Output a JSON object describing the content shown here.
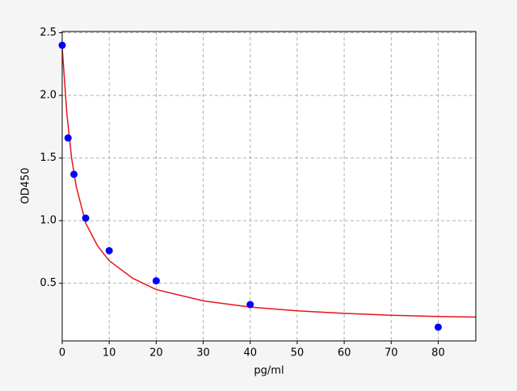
{
  "chart_data": {
    "type": "scatter",
    "xlabel": "pg/ml",
    "ylabel": "OD450",
    "xlim": [
      0,
      88
    ],
    "ylim": [
      0.04,
      2.51
    ],
    "xticks": [
      0,
      10,
      20,
      30,
      40,
      50,
      60,
      70,
      80
    ],
    "yticks": [
      0.5,
      {
        "value": 1,
        "label": "1.0"
      },
      1.5,
      {
        "value": 2,
        "label": "2.0"
      },
      2.5
    ],
    "grid": true,
    "series": [
      {
        "mode": "line",
        "color": "#e8141b",
        "x": [
          0,
          1,
          2,
          3,
          5,
          7.5,
          10,
          15,
          20,
          30,
          40,
          50,
          60,
          70,
          80,
          88
        ],
        "values": [
          2.38,
          1.85,
          1.5,
          1.27,
          0.98,
          0.8,
          0.68,
          0.54,
          0.45,
          0.36,
          0.31,
          0.28,
          0.26,
          0.245,
          0.235,
          0.23
        ]
      },
      {
        "mode": "markers",
        "color": "#0000ff",
        "x": [
          0,
          1.25,
          2.5,
          5,
          10,
          20,
          40,
          80
        ],
        "values": [
          2.4,
          1.66,
          1.37,
          1.02,
          0.76,
          0.52,
          0.33,
          0.15
        ]
      }
    ]
  }
}
